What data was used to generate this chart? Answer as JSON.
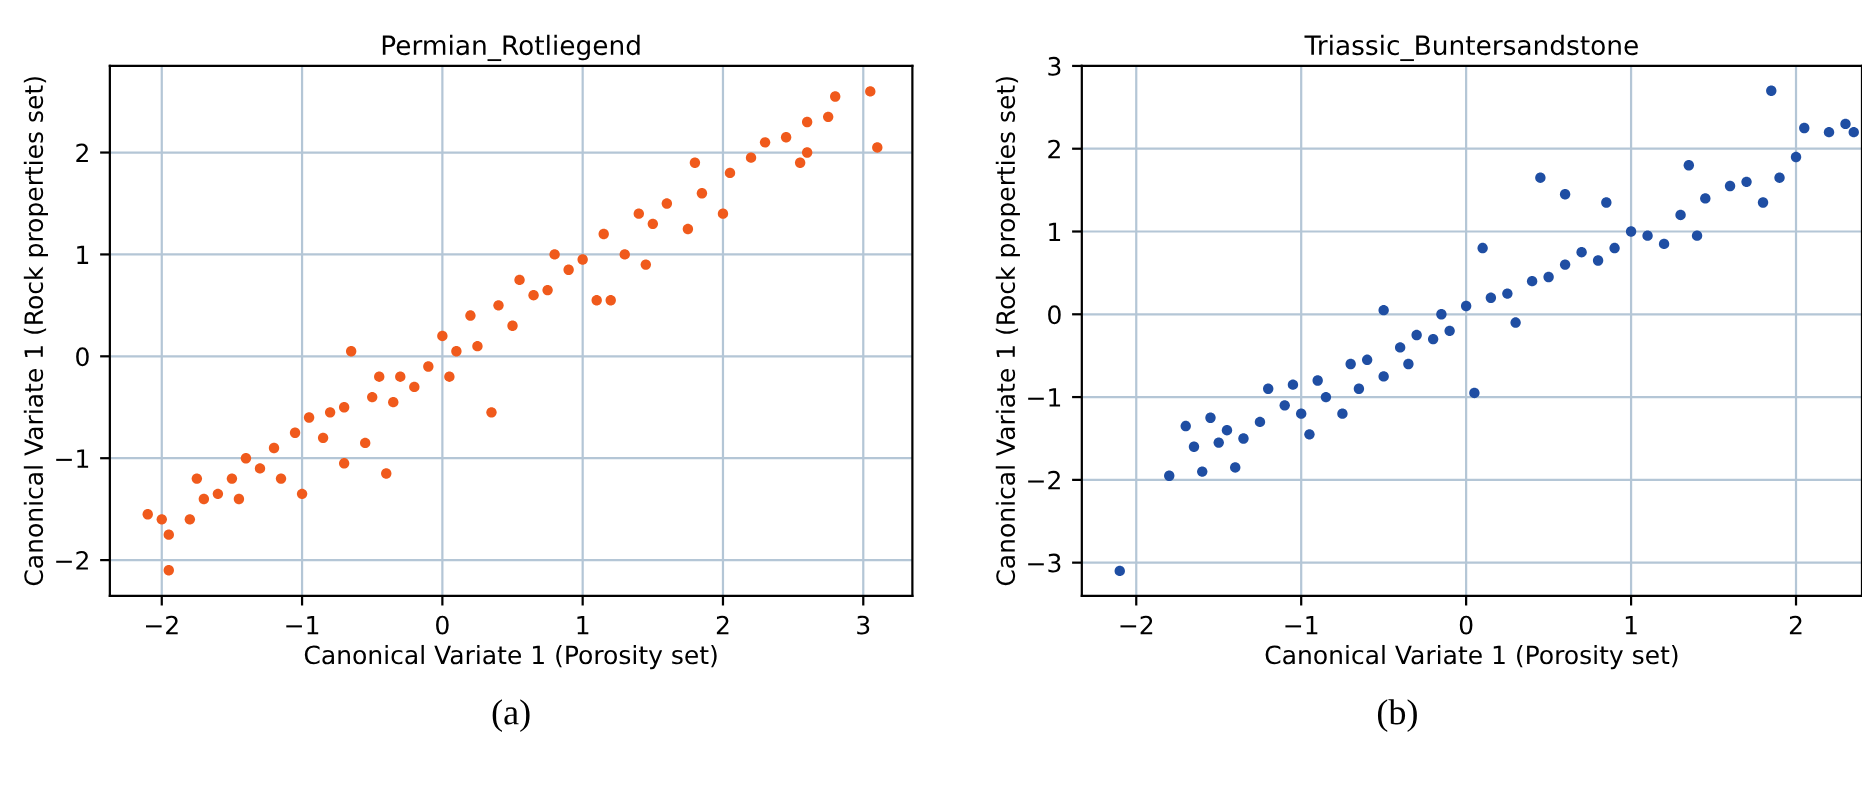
{
  "chart_data": [
    {
      "type": "scatter",
      "title": "Permian_Rotliegend",
      "xlabel": "Canonical Variate 1 (Porosity set)",
      "ylabel": "Canonical Variate 1 (Rock properties set)",
      "annotations": [
        "(a)"
      ],
      "xlim": [
        -2.37,
        3.35
      ],
      "ylim": [
        -2.35,
        2.85
      ],
      "xticks": [
        -2,
        -1,
        0,
        1,
        2,
        3
      ],
      "yticks": [
        -2,
        -1,
        0,
        1,
        2
      ],
      "grid": true,
      "marker": "circle",
      "series": [
        {
          "color": "#f05a1c",
          "x": [
            -2.1,
            -2.0,
            -1.95,
            -1.95,
            -1.8,
            -1.75,
            -1.7,
            -1.6,
            -1.5,
            -1.45,
            -1.4,
            -1.3,
            -1.2,
            -1.15,
            -1.05,
            -1.0,
            -0.95,
            -0.85,
            -0.8,
            -0.7,
            -0.7,
            -0.65,
            -0.55,
            -0.5,
            -0.45,
            -0.4,
            -0.35,
            -0.3,
            -0.2,
            -0.1,
            0,
            0.05,
            0.1,
            0.2,
            0.25,
            0.35,
            0.4,
            0.5,
            0.55,
            0.65,
            0.75,
            0.8,
            0.9,
            1.0,
            1.1,
            1.2,
            1.15,
            1.3,
            1.45,
            1.4,
            1.5,
            1.6,
            1.75,
            1.8,
            1.85,
            2.0,
            2.05,
            2.2,
            2.3,
            2.45,
            2.55,
            2.6,
            2.6,
            2.75,
            2.8,
            3.05,
            3.1
          ],
          "values": [
            -1.55,
            -1.6,
            -1.75,
            -2.1,
            -1.6,
            -1.2,
            -1.4,
            -1.35,
            -1.2,
            -1.4,
            -1.0,
            -1.1,
            -0.9,
            -1.2,
            -0.75,
            -1.35,
            -0.6,
            -0.8,
            -0.55,
            -0.5,
            -1.05,
            0.05,
            -0.85,
            -0.4,
            -0.2,
            -1.15,
            -0.45,
            -0.2,
            -0.3,
            -0.1,
            0.2,
            -0.2,
            0.05,
            0.4,
            0.1,
            -0.55,
            0.5,
            0.3,
            0.75,
            0.6,
            0.65,
            1.0,
            0.85,
            0.95,
            0.55,
            0.55,
            1.2,
            1.0,
            0.9,
            1.4,
            1.3,
            1.5,
            1.25,
            1.9,
            1.6,
            1.4,
            1.8,
            1.95,
            2.1,
            2.15,
            1.9,
            2.0,
            2.3,
            2.35,
            2.55,
            2.6,
            2.05
          ]
        }
      ]
    },
    {
      "type": "scatter",
      "title": "Triassic_Buntersandstone",
      "xlabel": "Canonical Variate 1 (Porosity set)",
      "ylabel": "Canonical Variate 1 (Rock properties set)",
      "annotations": [
        "(b)"
      ],
      "xlim": [
        -2.33,
        2.4
      ],
      "ylim": [
        -3.4,
        3.0
      ],
      "xticks": [
        -2,
        -1,
        0,
        1,
        2
      ],
      "yticks": [
        -3,
        -2,
        -1,
        0,
        1,
        2,
        3
      ],
      "grid": true,
      "marker": "circle",
      "series": [
        {
          "color": "#1f4ea3",
          "x": [
            -2.1,
            -1.8,
            -1.7,
            -1.65,
            -1.6,
            -1.55,
            -1.5,
            -1.45,
            -1.4,
            -1.35,
            -1.25,
            -1.2,
            -1.1,
            -1.05,
            -1.0,
            -0.95,
            -0.9,
            -0.85,
            -0.75,
            -0.7,
            -0.65,
            -0.6,
            -0.5,
            -0.5,
            -0.4,
            -0.35,
            -0.3,
            -0.2,
            -0.15,
            -0.1,
            0,
            0.05,
            0.1,
            0.15,
            0.25,
            0.3,
            0.4,
            0.45,
            0.5,
            0.6,
            0.6,
            0.7,
            0.8,
            0.85,
            0.9,
            1.0,
            1.1,
            1.2,
            1.3,
            1.35,
            1.4,
            1.45,
            1.6,
            1.7,
            1.8,
            1.85,
            1.9,
            2.0,
            2.05,
            2.2,
            2.3,
            2.35
          ],
          "values": [
            -3.1,
            -1.95,
            -1.35,
            -1.6,
            -1.9,
            -1.25,
            -1.55,
            -1.4,
            -1.85,
            -1.5,
            -1.3,
            -0.9,
            -1.1,
            -0.85,
            -1.2,
            -1.45,
            -0.8,
            -1.0,
            -1.2,
            -0.6,
            -0.9,
            -0.55,
            -0.75,
            0.05,
            -0.4,
            -0.6,
            -0.25,
            -0.3,
            0.0,
            -0.2,
            0.1,
            -0.95,
            0.8,
            0.2,
            0.25,
            -0.1,
            0.4,
            1.65,
            0.45,
            1.45,
            0.6,
            0.75,
            0.65,
            1.35,
            0.8,
            1.0,
            0.95,
            0.85,
            1.2,
            1.8,
            0.95,
            1.4,
            1.55,
            1.6,
            1.35,
            2.7,
            1.65,
            1.9,
            2.25,
            2.2,
            2.3,
            2.2
          ]
        }
      ]
    }
  ]
}
